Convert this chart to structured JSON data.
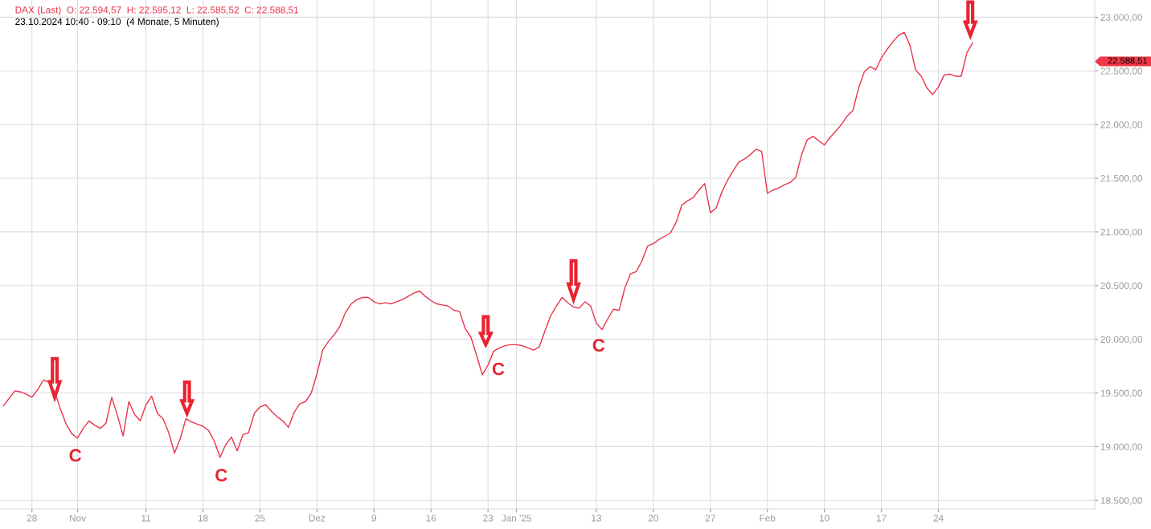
{
  "chart_data": {
    "type": "line",
    "title": "DAX (Last)  O: 22.594,57  H: 22.595,12  L: 22.585,52  C: 22.588,51",
    "subtitle": "23.10.2024 10:40 - 09:10  (4 Monate, 5 Minuten)",
    "categories": [
      null,
      null,
      null,
      null,
      null,
      "28",
      null,
      null,
      null,
      null,
      null,
      null,
      null,
      "Nov",
      null,
      null,
      null,
      null,
      null,
      null,
      null,
      null,
      null,
      null,
      null,
      "11",
      null,
      null,
      null,
      null,
      null,
      null,
      null,
      null,
      null,
      "18",
      null,
      null,
      null,
      null,
      null,
      null,
      null,
      null,
      null,
      "25",
      null,
      null,
      null,
      null,
      null,
      null,
      null,
      null,
      null,
      "Dez",
      null,
      null,
      null,
      null,
      null,
      null,
      null,
      null,
      null,
      "9",
      null,
      null,
      null,
      null,
      null,
      null,
      null,
      null,
      null,
      "16",
      null,
      null,
      null,
      null,
      null,
      null,
      null,
      null,
      null,
      "23",
      null,
      null,
      null,
      null,
      "Jan '25",
      null,
      null,
      null,
      null,
      null,
      null,
      null,
      null,
      null,
      null,
      null,
      null,
      null,
      "13",
      null,
      null,
      null,
      null,
      null,
      null,
      null,
      null,
      null,
      "20",
      null,
      null,
      null,
      null,
      null,
      null,
      null,
      null,
      null,
      "27",
      null,
      null,
      null,
      null,
      null,
      null,
      null,
      null,
      null,
      "Feb",
      null,
      null,
      null,
      null,
      null,
      null,
      null,
      null,
      null,
      "10",
      null,
      null,
      null,
      null,
      null,
      null,
      null,
      null,
      null,
      "17",
      null,
      null,
      null,
      null,
      null,
      null,
      null,
      null,
      null,
      "24",
      null,
      null,
      null,
      null,
      null,
      null
    ],
    "series": [
      {
        "color": "#e8344a",
        "values": [
          19380,
          19450,
          19520,
          19510,
          19490,
          19460,
          19530,
          19620,
          19600,
          19510,
          19350,
          19210,
          19120,
          19080,
          19170,
          19240,
          19200,
          19170,
          19220,
          19460,
          19290,
          19100,
          19420,
          19300,
          19240,
          19390,
          19470,
          19310,
          19260,
          19130,
          18940,
          19070,
          19260,
          19230,
          19210,
          19190,
          19150,
          19050,
          18900,
          19020,
          19090,
          18960,
          19110,
          19130,
          19310,
          19370,
          19390,
          19330,
          19280,
          19240,
          19180,
          19320,
          19400,
          19420,
          19500,
          19680,
          19900,
          19980,
          20040,
          20120,
          20250,
          20330,
          20370,
          20390,
          20390,
          20350,
          20330,
          20340,
          20330,
          20350,
          20370,
          20400,
          20430,
          20450,
          20400,
          20360,
          20330,
          20320,
          20310,
          20270,
          20260,
          20100,
          20020,
          19850,
          19670,
          19760,
          19890,
          19920,
          19940,
          19950,
          19950,
          19940,
          19920,
          19900,
          19930,
          20080,
          20220,
          20310,
          20390,
          20340,
          20300,
          20290,
          20350,
          20310,
          20150,
          20090,
          20190,
          20280,
          20270,
          20480,
          20610,
          20630,
          20730,
          20870,
          20890,
          20930,
          20960,
          20990,
          21090,
          21250,
          21290,
          21320,
          21390,
          21450,
          21180,
          21220,
          21370,
          21480,
          21570,
          21650,
          21680,
          21720,
          21770,
          21750,
          21360,
          21390,
          21410,
          21440,
          21460,
          21510,
          21720,
          21860,
          21890,
          21850,
          21810,
          21880,
          21940,
          22000,
          22080,
          22130,
          22340,
          22490,
          22540,
          22510,
          22620,
          22700,
          22770,
          22830,
          22860,
          22740,
          22510,
          22450,
          22340,
          22280,
          22350,
          22460,
          22470,
          22450,
          22450,
          22670,
          22760
        ]
      }
    ],
    "ylim": [
      18420,
      23160
    ],
    "yticks": [
      {
        "value": 18500,
        "label": "18.500,00"
      },
      {
        "value": 19000,
        "label": "19.000,00"
      },
      {
        "value": 19500,
        "label": "19.500,00"
      },
      {
        "value": 20000,
        "label": "20.000,00"
      },
      {
        "value": 20500,
        "label": "20.500,00"
      },
      {
        "value": 21000,
        "label": "21.000,00"
      },
      {
        "value": 21500,
        "label": "21.500,00"
      },
      {
        "value": 22000,
        "label": "22.000,00"
      },
      {
        "value": 22500,
        "label": "22.500,00"
      },
      {
        "value": 23000,
        "label": "23.000,00"
      }
    ],
    "grid": true,
    "legend": false,
    "marker": "none",
    "line_style": "solid",
    "annotations": [
      "C",
      "C",
      "C",
      "C",
      "22.588,51"
    ]
  }
}
